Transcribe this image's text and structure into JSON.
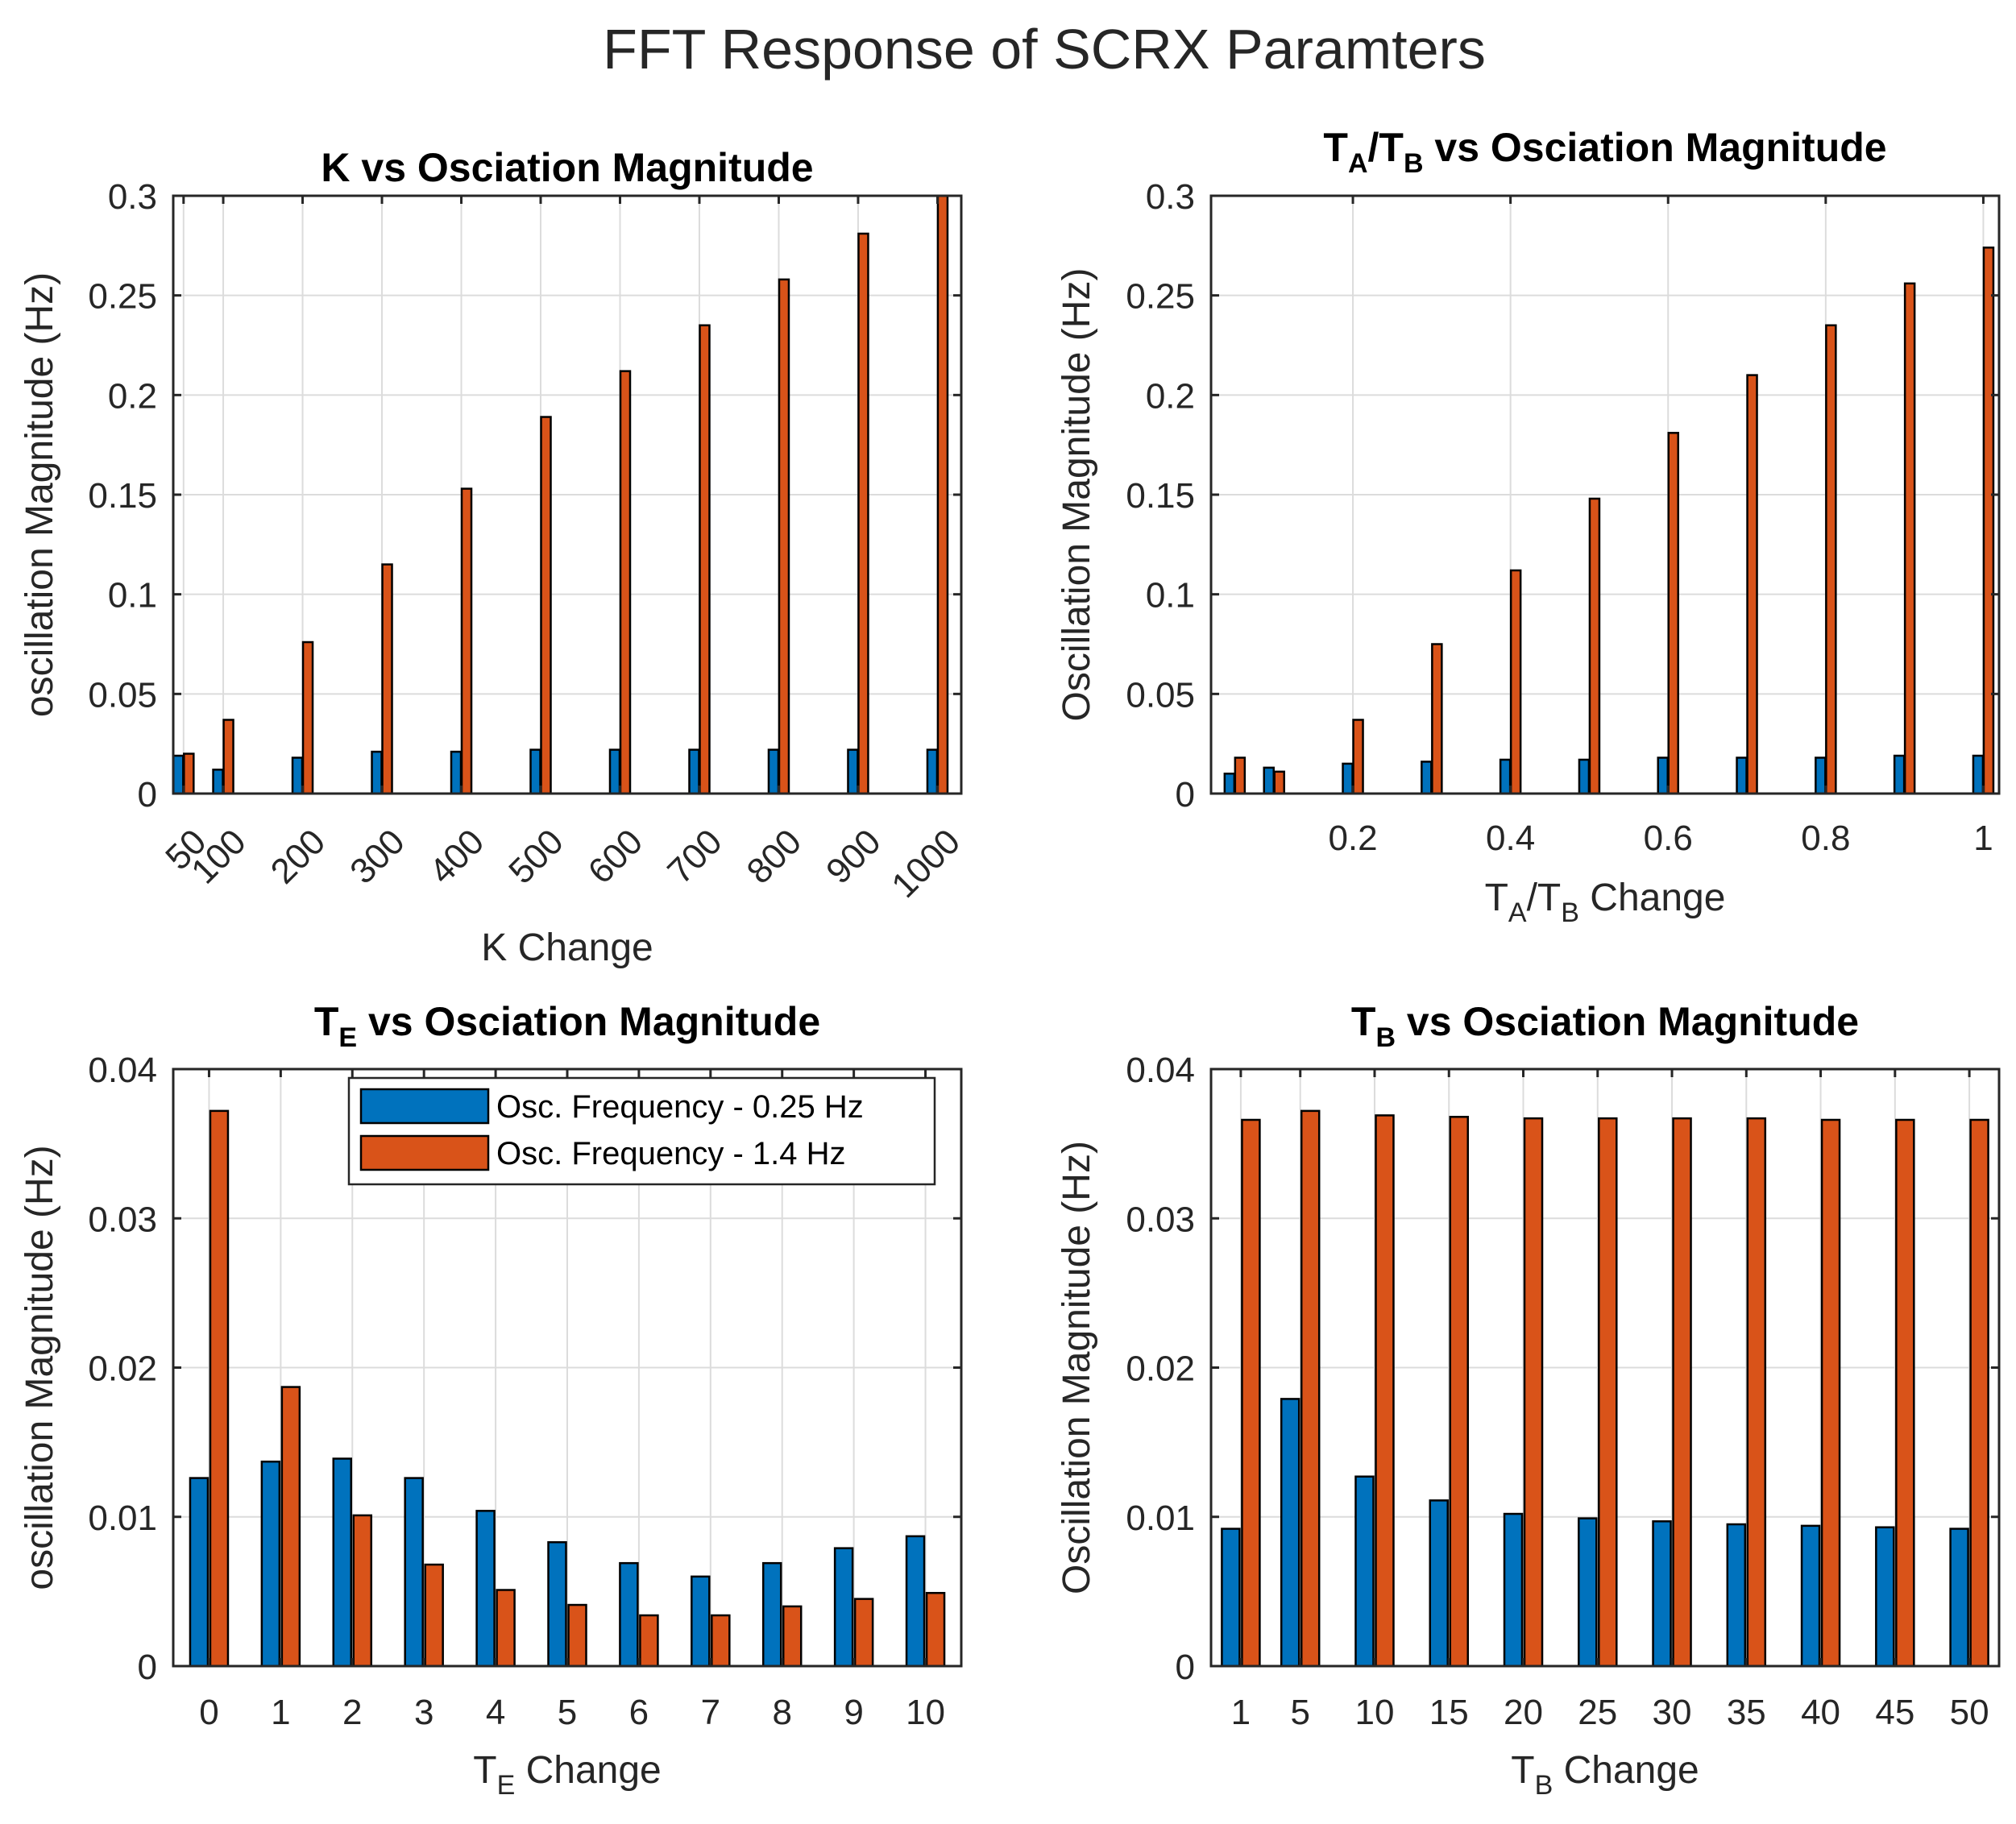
{
  "figure_title": "FFT Response of SCRX Paramters",
  "legend": [
    "Osc. Frequency - 0.25 Hz",
    "Osc. Frequency - 1.4 Hz"
  ],
  "colors": {
    "series1": "#0072BD",
    "series2": "#D95319"
  },
  "chart_data": [
    {
      "type": "bar",
      "title": "K vs Osciation Magnitude",
      "xlabel": "K Change",
      "ylabel": "oscillation Magnitude (Hz)",
      "x": [
        50,
        100,
        200,
        300,
        400,
        500,
        600,
        700,
        800,
        900,
        1000
      ],
      "xlim": [
        37,
        1030
      ],
      "ylim": [
        0,
        0.3
      ],
      "yticks": [
        0,
        0.05,
        0.1,
        0.15,
        0.2,
        0.25,
        0.3
      ],
      "ytick_labels": [
        "0",
        "0.05",
        "0.1",
        "0.15",
        "0.2",
        "0.25",
        "0.3"
      ],
      "xticks": [
        50,
        100,
        200,
        300,
        400,
        500,
        600,
        700,
        800,
        900,
        1000
      ],
      "xtick_labels": [
        "50",
        "100",
        "200",
        "300",
        "400",
        "500",
        "600",
        "700",
        "800",
        "900",
        "1000"
      ],
      "xtick_rotation": 45,
      "grid": true,
      "series": [
        {
          "name": "Osc. Frequency - 0.25 Hz",
          "values": [
            0.019,
            0.012,
            0.018,
            0.021,
            0.021,
            0.022,
            0.022,
            0.022,
            0.022,
            0.022,
            0.022
          ]
        },
        {
          "name": "Osc. Frequency - 1.4 Hz",
          "values": [
            0.02,
            0.037,
            0.076,
            0.115,
            0.153,
            0.189,
            0.212,
            0.235,
            0.258,
            0.281,
            0.305
          ]
        }
      ]
    },
    {
      "type": "bar",
      "title": "TA/TB vs Osciation Magnitude",
      "title_parts": [
        "T",
        "A",
        "/T",
        "B",
        " vs Osciation Magnitude"
      ],
      "xlabel": "TA/TB Change",
      "xlabel_parts": [
        "T",
        "A",
        "/T",
        "B",
        " Change"
      ],
      "ylabel": "Oscillation Magnitude (Hz)",
      "x": [
        0.05,
        0.1,
        0.2,
        0.3,
        0.4,
        0.5,
        0.6,
        0.7,
        0.8,
        0.9,
        1.0
      ],
      "xlim": [
        0.02,
        1.02
      ],
      "ylim": [
        0,
        0.3
      ],
      "yticks": [
        0,
        0.05,
        0.1,
        0.15,
        0.2,
        0.25,
        0.3
      ],
      "ytick_labels": [
        "0",
        "0.05",
        "0.1",
        "0.15",
        "0.2",
        "0.25",
        "0.3"
      ],
      "xticks": [
        0.2,
        0.4,
        0.6,
        0.8,
        1.0
      ],
      "xtick_labels": [
        "0.2",
        "0.4",
        "0.6",
        "0.8",
        "1"
      ],
      "xtick_rotation": 0,
      "grid": true,
      "series": [
        {
          "name": "Osc. Frequency - 0.25 Hz",
          "values": [
            0.01,
            0.013,
            0.015,
            0.016,
            0.017,
            0.017,
            0.018,
            0.018,
            0.018,
            0.019,
            0.019
          ]
        },
        {
          "name": "Osc. Frequency - 1.4 Hz",
          "values": [
            0.018,
            0.011,
            0.037,
            0.075,
            0.112,
            0.148,
            0.181,
            0.21,
            0.235,
            0.256,
            0.274
          ]
        }
      ]
    },
    {
      "type": "bar",
      "title": "TE vs Osciation Magnitude",
      "title_parts": [
        "T",
        "E",
        " vs Osciation Magnitude"
      ],
      "xlabel": "TE Change",
      "xlabel_parts": [
        "T",
        "E",
        " Change"
      ],
      "ylabel": "oscillation Magnitude (Hz)",
      "x": [
        0,
        1,
        2,
        3,
        4,
        5,
        6,
        7,
        8,
        9,
        10
      ],
      "xlim": [
        -0.5,
        10.5
      ],
      "ylim": [
        0,
        0.04
      ],
      "yticks": [
        0,
        0.01,
        0.02,
        0.03,
        0.04
      ],
      "ytick_labels": [
        "0",
        "0.01",
        "0.02",
        "0.03",
        "0.04"
      ],
      "xticks": [
        0,
        1,
        2,
        3,
        4,
        5,
        6,
        7,
        8,
        9,
        10
      ],
      "xtick_labels": [
        "0",
        "1",
        "2",
        "3",
        "4",
        "5",
        "6",
        "7",
        "8",
        "9",
        "10"
      ],
      "xtick_rotation": 0,
      "grid": true,
      "legend": "top-right",
      "series": [
        {
          "name": "Osc. Frequency - 0.25 Hz",
          "values": [
            0.0126,
            0.0137,
            0.0139,
            0.0126,
            0.0104,
            0.0083,
            0.0069,
            0.006,
            0.0069,
            0.0079,
            0.0087
          ]
        },
        {
          "name": "Osc. Frequency - 1.4 Hz",
          "values": [
            0.0372,
            0.0187,
            0.0101,
            0.0068,
            0.0051,
            0.0041,
            0.0034,
            0.0034,
            0.004,
            0.0045,
            0.0049
          ]
        }
      ]
    },
    {
      "type": "bar",
      "title": "TB vs Osciation Magnitude",
      "title_parts": [
        "T",
        "B",
        " vs Osciation Magnitude"
      ],
      "xlabel": "TB Change",
      "xlabel_parts": [
        "T",
        "B",
        " Change"
      ],
      "ylabel": "Oscillation Magnitude (Hz)",
      "x": [
        1,
        5,
        10,
        15,
        20,
        25,
        30,
        35,
        40,
        45,
        50
      ],
      "xlim": [
        -1,
        52
      ],
      "ylim": [
        0,
        0.04
      ],
      "yticks": [
        0,
        0.01,
        0.02,
        0.03,
        0.04
      ],
      "ytick_labels": [
        "0",
        "0.01",
        "0.02",
        "0.03",
        "0.04"
      ],
      "xticks": [
        1,
        5,
        10,
        15,
        20,
        25,
        30,
        35,
        40,
        45,
        50
      ],
      "xtick_labels": [
        "1",
        "5",
        "10",
        "15",
        "20",
        "25",
        "30",
        "35",
        "40",
        "45",
        "50"
      ],
      "xtick_rotation": 0,
      "grid": true,
      "series": [
        {
          "name": "Osc. Frequency - 0.25 Hz",
          "values": [
            0.0092,
            0.0179,
            0.0127,
            0.0111,
            0.0102,
            0.0099,
            0.0097,
            0.0095,
            0.0094,
            0.0093,
            0.0092
          ]
        },
        {
          "name": "Osc. Frequency - 1.4 Hz",
          "values": [
            0.0366,
            0.0372,
            0.0369,
            0.0368,
            0.0367,
            0.0367,
            0.0367,
            0.0367,
            0.0366,
            0.0366,
            0.0366
          ]
        }
      ]
    }
  ]
}
